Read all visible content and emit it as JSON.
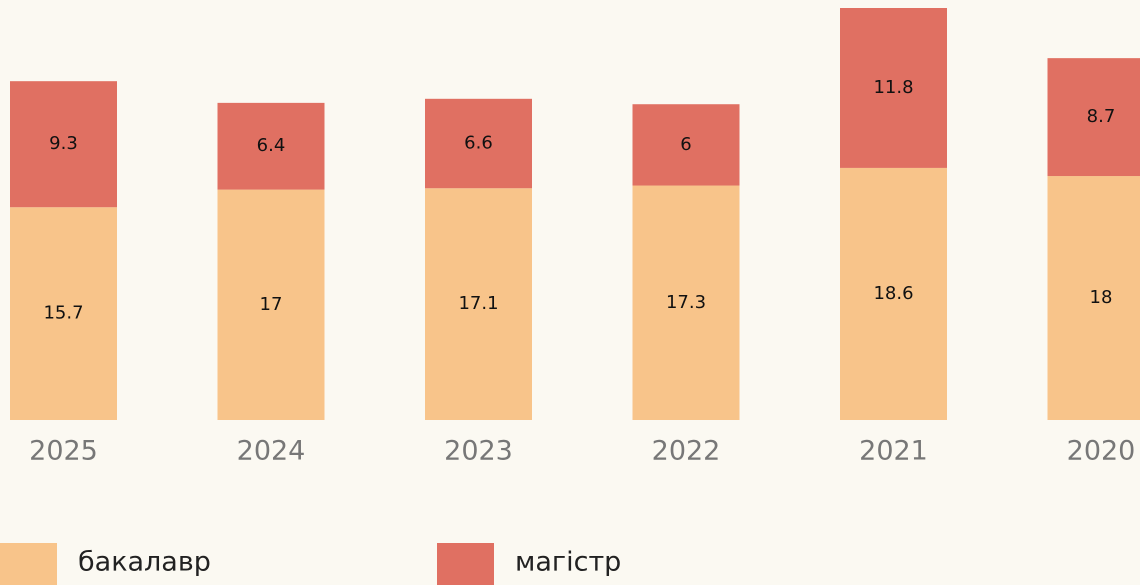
{
  "chart_data": {
    "type": "stacked-bar",
    "categories": [
      "2025",
      "2024",
      "2023",
      "2022",
      "2021",
      "2020"
    ],
    "series": [
      {
        "name": "бакалавр",
        "color": "#f8c48a",
        "values": [
          15.7,
          17,
          17.1,
          17.3,
          18.6,
          18
        ]
      },
      {
        "name": "магістр",
        "color": "#e07062",
        "values": [
          9.3,
          6.4,
          6.6,
          6,
          11.8,
          8.7
        ]
      }
    ]
  }
}
